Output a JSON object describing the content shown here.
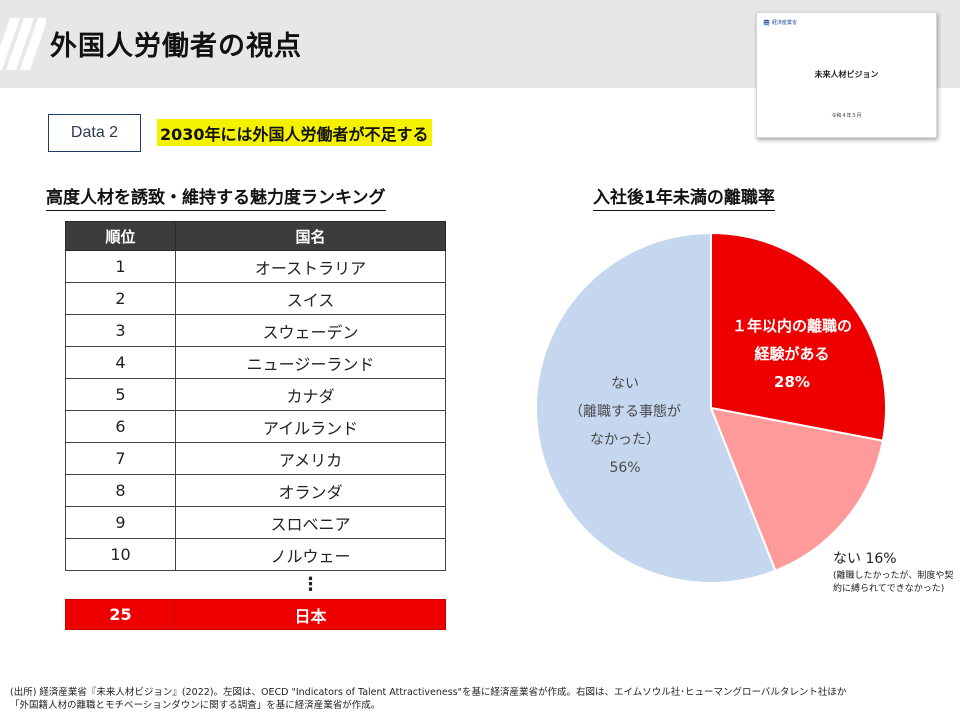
{
  "header": {
    "title": "外国人労働者の視点"
  },
  "cover": {
    "logo_text": "経済産業省",
    "title": "未来人材ビジョン",
    "date": "令和４年５月"
  },
  "badge": {
    "label": "Data 2"
  },
  "headline": "2030年には外国人労働者が不足する",
  "ranking": {
    "title": "高度人材を誘致・維持する魅力度ランキング",
    "columns": [
      "順位",
      "国名"
    ],
    "rows": [
      {
        "rank": "1",
        "country": "オーストラリア"
      },
      {
        "rank": "2",
        "country": "スイス"
      },
      {
        "rank": "3",
        "country": "スウェーデン"
      },
      {
        "rank": "4",
        "country": "ニュージーランド"
      },
      {
        "rank": "5",
        "country": "カナダ"
      },
      {
        "rank": "6",
        "country": "アイルランド"
      },
      {
        "rank": "7",
        "country": "アメリカ"
      },
      {
        "rank": "8",
        "country": "オランダ"
      },
      {
        "rank": "9",
        "country": "スロベニア"
      },
      {
        "rank": "10",
        "country": "ノルウェー"
      }
    ],
    "ellipsis": "⋮",
    "japan": {
      "rank": "25",
      "country": "日本"
    }
  },
  "chart_data": {
    "type": "pie",
    "title": "入社後1年未満の離職率",
    "slices": [
      {
        "label_lines": [
          "１年以内の離職の",
          "経験がある",
          "28%"
        ],
        "value": 28,
        "color": "#ef0000"
      },
      {
        "label_lines": [
          "ない 16%"
        ],
        "note": "(離職したかったが、制度や契約に縛られてできなかった)",
        "value": 16,
        "color": "#ff9a9a"
      },
      {
        "label_lines": [
          "ない",
          "（離職する事態が",
          "なかった）",
          "56%"
        ],
        "value": 56,
        "color": "#c5d6ef"
      }
    ]
  },
  "footnote": {
    "line1": "(出所) 経済産業省『未来人材ビジョン』(2022)。左図は、OECD \"Indicators of Talent Attractiveness\"を基に経済産業省が作成。右図は、エイムソウル社･ヒューマングローバルタレント社ほか",
    "line2": "「外国籍人材の離職とモチベーションダウンに関する調査」を基に経済産業省が作成。"
  }
}
